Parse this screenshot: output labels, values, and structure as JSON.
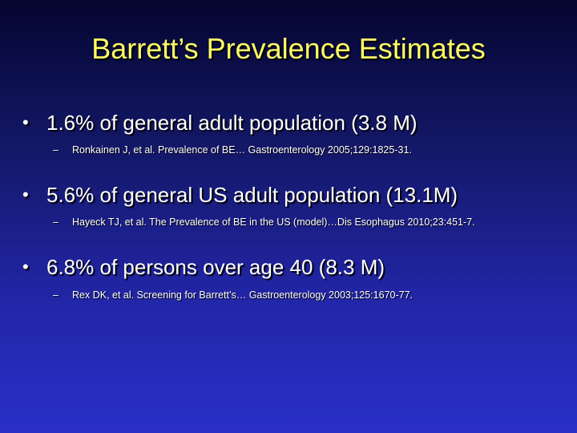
{
  "slide": {
    "title": "Barrett’s Prevalence Estimates",
    "bullet_symbol": "•",
    "sub_bullet_symbol": "–",
    "bullets": [
      {
        "text": "1.6% of general adult population (3.8 M)",
        "reference": "Ronkainen J, et al. Prevalence of BE… Gastroenterology 2005;129:1825-31."
      },
      {
        "text": "5.6% of general US adult population (13.1M)",
        "reference": "Hayeck TJ, et al. The Prevalence of BE in the US (model)…Dis Esophagus 2010;23:451-7."
      },
      {
        "text": "6.8% of persons over age 40 (8.3 M)",
        "reference": "Rex DK, et al. Screening for Barrett’s… Gastroenterology 2003;125:1670-77."
      }
    ]
  }
}
